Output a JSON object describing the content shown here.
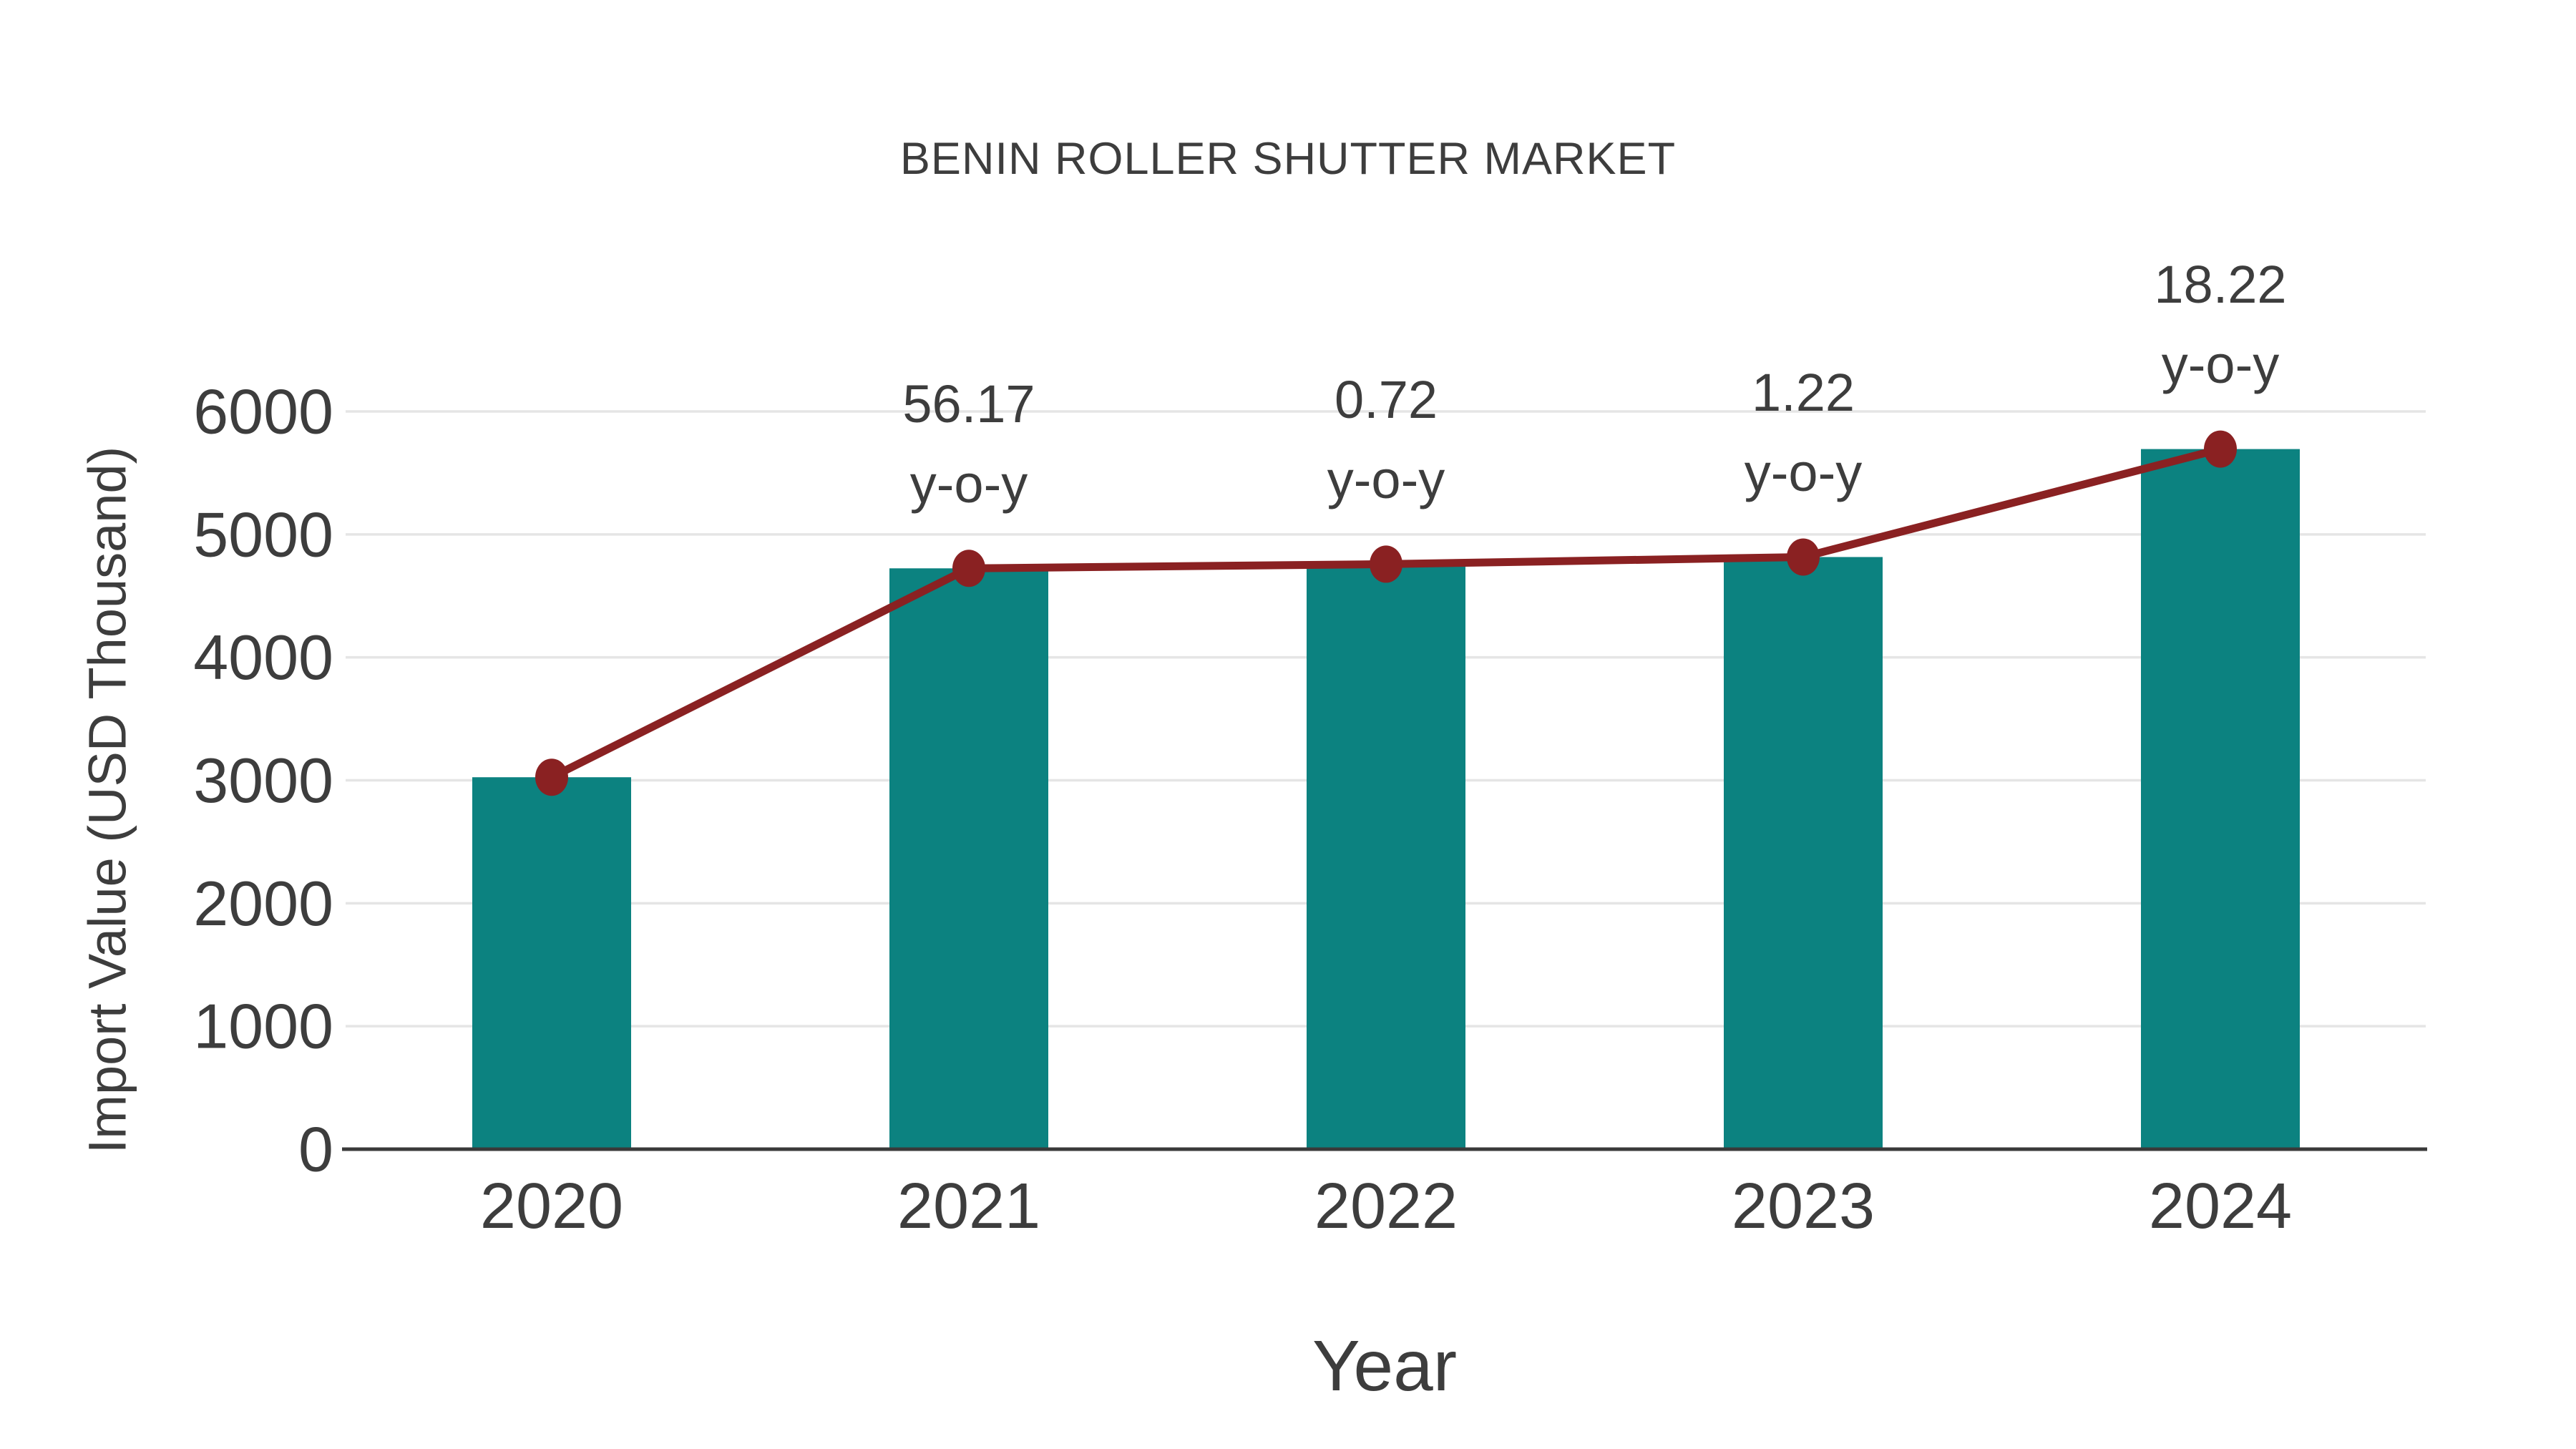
{
  "chart_data": {
    "type": "bar",
    "title": "BENIN ROLLER SHUTTER MARKET",
    "xlabel": "Year",
    "ylabel": "Import Value (USD Thousand)",
    "categories": [
      "2020",
      "2021",
      "2022",
      "2023",
      "2024"
    ],
    "series": [
      {
        "name": "Import Value bars",
        "type": "bar",
        "color": "#0c8280",
        "values": [
          3025,
          4724,
          4758,
          4816,
          5694
        ]
      },
      {
        "name": "Import Value trend line",
        "type": "line",
        "color": "#8a2122",
        "values": [
          3025,
          4724,
          4758,
          4816,
          5694
        ]
      }
    ],
    "annotations": [
      {
        "category": "2021",
        "line1": "56.17",
        "line2": "y-o-y"
      },
      {
        "category": "2022",
        "line1": "0.72",
        "line2": "y-o-y"
      },
      {
        "category": "2023",
        "line1": "1.22",
        "line2": "y-o-y"
      },
      {
        "category": "2024",
        "line1": "18.22",
        "line2": "y-o-y"
      }
    ],
    "ylim": [
      0,
      6000
    ],
    "yticks": [
      0,
      1000,
      2000,
      3000,
      4000,
      5000,
      6000
    ],
    "grid": true,
    "legend": false,
    "colors": {
      "text": "#3d3d3d",
      "gridline": "#e5e5e5",
      "axis_line": "#3a3a3a",
      "background": "#ffffff"
    }
  }
}
